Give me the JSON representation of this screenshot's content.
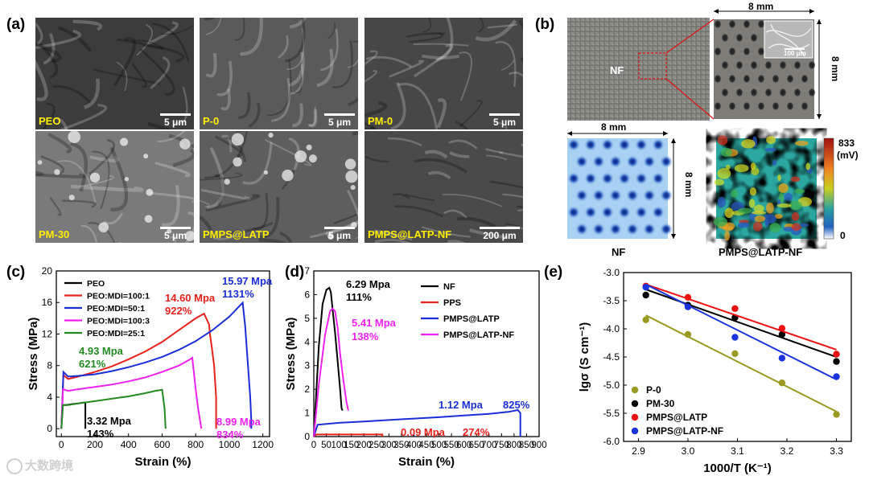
{
  "panels": {
    "a": {
      "label": "(a)",
      "tiles": [
        {
          "label": "PEO",
          "scale": "5 μm"
        },
        {
          "label": "P-0",
          "scale": "5 μm"
        },
        {
          "label": "PM-0",
          "scale": "5 μm"
        },
        {
          "label": "PM-30",
          "scale": "5 μm"
        },
        {
          "label": "PMPS@LATP",
          "scale": "5 μm"
        },
        {
          "label": "PMPS@LATP-NF",
          "scale": "200 μm"
        }
      ]
    },
    "b": {
      "label": "(b)",
      "nf_label": "NF",
      "dim": "8 mm",
      "inset_scale": "100 μm",
      "caption_left": "NF",
      "caption_right": "PMPS@LATP-NF",
      "colorbar_max": "833",
      "colorbar_unit": "(mV)",
      "colorbar_min": "0"
    },
    "c": {
      "label": "(c)"
    },
    "d": {
      "label": "(d)"
    },
    "e": {
      "label": "(e)"
    }
  },
  "chart_data": [
    {
      "type": "line",
      "panel": "c",
      "xlabel": "Strain (%)",
      "ylabel": "Stress (MPa)",
      "xlim": [
        -30,
        1240
      ],
      "ylim": [
        -1,
        20
      ],
      "xticks": [
        0,
        200,
        400,
        600,
        800,
        1000,
        1200
      ],
      "yticks": [
        0,
        4,
        8,
        12,
        16,
        20
      ],
      "series": [
        {
          "name": "PEO",
          "color": "#000000",
          "x": [
            0,
            8,
            30,
            60,
            100,
            130,
            143,
            143
          ],
          "y": [
            0,
            3.0,
            3.0,
            3.1,
            3.2,
            3.3,
            3.32,
            0
          ]
        },
        {
          "name": "PEO:MDI=100:1",
          "color": "#e8221b",
          "x": [
            0,
            12,
            40,
            100,
            200,
            300,
            400,
            500,
            600,
            700,
            800,
            850,
            880,
            885,
            895,
            910,
            922,
            922
          ],
          "y": [
            0,
            6.8,
            6.3,
            6.6,
            7.2,
            7.9,
            8.8,
            9.8,
            11.0,
            12.5,
            14.0,
            14.6,
            13.2,
            12.0,
            10.5,
            8.0,
            4.0,
            0
          ]
        },
        {
          "name": "PEO:MDI=50:1",
          "color": "#1a2ed6",
          "x": [
            0,
            12,
            40,
            100,
            200,
            300,
            400,
            500,
            600,
            700,
            800,
            900,
            1000,
            1080,
            1095,
            1105,
            1115,
            1125,
            1131,
            1131
          ],
          "y": [
            0,
            7.2,
            6.6,
            6.7,
            6.9,
            7.3,
            7.8,
            8.4,
            9.1,
            10.0,
            11.1,
            12.5,
            14.2,
            15.97,
            13.0,
            10.0,
            7.0,
            4.0,
            1.0,
            0
          ]
        },
        {
          "name": "PEO:MDI=100:3",
          "color": "#ee22ee",
          "x": [
            0,
            10,
            40,
            100,
            200,
            300,
            400,
            500,
            600,
            700,
            760,
            780,
            790,
            800,
            815,
            834
          ],
          "y": [
            0,
            5.0,
            4.8,
            5.0,
            5.3,
            5.6,
            6.0,
            6.5,
            7.2,
            8.0,
            8.7,
            8.99,
            7.0,
            5.0,
            2.5,
            0
          ]
        },
        {
          "name": "PEO:MDI=25:1",
          "color": "#228b22",
          "x": [
            0,
            10,
            40,
            100,
            200,
            300,
            400,
            500,
            560,
            600,
            615,
            621
          ],
          "y": [
            0,
            3.0,
            3.0,
            3.2,
            3.5,
            3.8,
            4.1,
            4.5,
            4.8,
            4.93,
            2.5,
            0
          ]
        }
      ],
      "annotations": [
        {
          "text": "15.97 Mpa",
          "color": "#1a2ed6"
        },
        {
          "text": "1131%",
          "color": "#1a2ed6"
        },
        {
          "text": "14.60 Mpa",
          "color": "#e8221b"
        },
        {
          "text": "922%",
          "color": "#e8221b"
        },
        {
          "text": "4.93 Mpa",
          "color": "#228b22"
        },
        {
          "text": "621%",
          "color": "#228b22"
        },
        {
          "text": "3.32 Mpa",
          "color": "#000000"
        },
        {
          "text": "143%",
          "color": "#000000"
        },
        {
          "text": "8.99 Mpa",
          "color": "#ee22ee"
        },
        {
          "text": "834%",
          "color": "#ee22ee"
        }
      ]
    },
    {
      "type": "line",
      "panel": "d",
      "xlabel": "Strain (%)",
      "ylabel": "Stress (MPa)",
      "xlim": [
        0,
        900
      ],
      "ylim": [
        0,
        7
      ],
      "xticks": [
        0,
        50,
        100,
        150,
        200,
        250,
        300,
        350,
        400,
        450,
        500,
        550,
        600,
        650,
        700,
        750,
        800,
        850,
        900
      ],
      "yticks": [
        0,
        1,
        2,
        3,
        4,
        5,
        6,
        7
      ],
      "series": [
        {
          "name": "NF",
          "color": "#000000",
          "x": [
            0,
            8,
            20,
            35,
            50,
            62,
            68,
            75,
            85,
            95,
            105,
            111,
            115
          ],
          "y": [
            0,
            1.5,
            3.8,
            5.6,
            6.2,
            6.29,
            6.1,
            5.4,
            4.4,
            3.2,
            2.0,
            1.2,
            1.1
          ]
        },
        {
          "name": "PPS",
          "color": "#e8221b",
          "x": [
            0,
            10,
            60,
            120,
            180,
            230,
            274,
            274
          ],
          "y": [
            0,
            0.09,
            0.09,
            0.09,
            0.09,
            0.09,
            0.09,
            0
          ]
        },
        {
          "name": "PMPS@LATP",
          "color": "#1a2ed6",
          "x": [
            0,
            15,
            100,
            200,
            300,
            400,
            500,
            600,
            700,
            780,
            815,
            825,
            825
          ],
          "y": [
            0,
            0.5,
            0.58,
            0.64,
            0.7,
            0.76,
            0.82,
            0.89,
            0.96,
            1.05,
            1.12,
            1.0,
            0
          ]
        },
        {
          "name": "PMPS@LATP-NF",
          "color": "#ee22ee",
          "x": [
            0,
            20,
            45,
            65,
            75,
            85,
            95,
            105,
            118,
            130,
            138
          ],
          "y": [
            0,
            2.2,
            4.3,
            5.3,
            5.41,
            5.3,
            4.6,
            3.5,
            2.4,
            1.5,
            1.1
          ]
        }
      ],
      "annotations": [
        {
          "text": "6.29 Mpa",
          "color": "#000000"
        },
        {
          "text": "111%",
          "color": "#000000"
        },
        {
          "text": "5.41 Mpa",
          "color": "#ee22ee"
        },
        {
          "text": "138%",
          "color": "#ee22ee"
        },
        {
          "text": "1.12 Mpa",
          "color": "#1a2ed6"
        },
        {
          "text": "825%",
          "color": "#1a2ed6"
        },
        {
          "text": "0.09 Mpa",
          "color": "#e8221b"
        },
        {
          "text": "274%",
          "color": "#e8221b"
        }
      ]
    },
    {
      "type": "scatter",
      "panel": "e",
      "xlabel": "1000/T (K⁻¹)",
      "ylabel": "lgσ (S cm⁻¹)",
      "xlim": [
        2.87,
        3.33
      ],
      "ylim": [
        -6.0,
        -3.0
      ],
      "xticks": [
        2.9,
        3.0,
        3.1,
        3.2,
        3.3
      ],
      "yticks": [
        -3.0,
        -3.5,
        -4.0,
        -4.5,
        -5.0,
        -5.5,
        -6.0
      ],
      "series": [
        {
          "name": "P-0",
          "color": "#9a9a22",
          "x": [
            2.915,
            3.0,
            3.095,
            3.19,
            3.3
          ],
          "y": [
            -3.84,
            -4.1,
            -4.44,
            -4.96,
            -5.52
          ],
          "fit": [
            [
              2.915,
              -3.76
            ],
            [
              3.3,
              -5.47
            ]
          ]
        },
        {
          "name": "PM-30",
          "color": "#000000",
          "x": [
            2.915,
            3.0,
            3.095,
            3.19,
            3.3
          ],
          "y": [
            -3.4,
            -3.58,
            -3.8,
            -4.1,
            -4.58
          ],
          "fit": [
            [
              2.915,
              -3.3
            ],
            [
              3.3,
              -4.5
            ]
          ]
        },
        {
          "name": "PMPS@LATP",
          "color": "#ee1111",
          "x": [
            2.915,
            3.0,
            3.095,
            3.19,
            3.3
          ],
          "y": [
            -3.24,
            -3.44,
            -3.64,
            -3.99,
            -4.45
          ],
          "fit": [
            [
              2.915,
              -3.21
            ],
            [
              3.3,
              -4.37
            ]
          ]
        },
        {
          "name": "PMPS@LATP-NF",
          "color": "#1a33dd",
          "x": [
            2.915,
            3.0,
            3.095,
            3.19,
            3.3
          ],
          "y": [
            -3.26,
            -3.61,
            -4.15,
            -4.52,
            -4.85
          ],
          "fit": [
            [
              2.915,
              -3.21
            ],
            [
              3.3,
              -4.9
            ]
          ]
        }
      ]
    }
  ],
  "watermark": "大数跨境"
}
